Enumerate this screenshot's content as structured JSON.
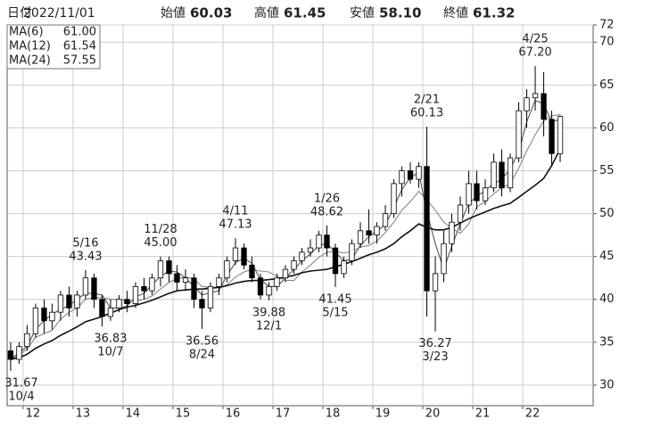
{
  "header": {
    "date_label": "日付",
    "date": "2022/11/01",
    "open_label": "始値",
    "open": "60.03",
    "high_label": "高値",
    "high": "61.45",
    "low_label": "安値",
    "low": "58.10",
    "close_label": "終値",
    "close": "61.32"
  },
  "chart_data": {
    "type": "candlestick",
    "x": [
      2011.75,
      2011.92,
      2012.08,
      2012.25,
      2012.42,
      2012.58,
      2012.75,
      2012.92,
      2013.08,
      2013.25,
      2013.42,
      2013.58,
      2013.75,
      2013.92,
      2014.08,
      2014.25,
      2014.42,
      2014.58,
      2014.75,
      2014.92,
      2015.08,
      2015.25,
      2015.42,
      2015.58,
      2015.75,
      2015.92,
      2016.08,
      2016.25,
      2016.42,
      2016.58,
      2016.75,
      2016.92,
      2017.08,
      2017.25,
      2017.42,
      2017.58,
      2017.75,
      2017.92,
      2018.08,
      2018.25,
      2018.42,
      2018.58,
      2018.75,
      2018.92,
      2019.08,
      2019.25,
      2019.42,
      2019.58,
      2019.75,
      2019.92,
      2020.08,
      2020.25,
      2020.42,
      2020.58,
      2020.75,
      2020.92,
      2021.08,
      2021.25,
      2021.42,
      2021.58,
      2021.75,
      2021.92,
      2022.08,
      2022.25,
      2022.42,
      2022.58,
      2022.75
    ],
    "open": [
      34,
      33,
      34.5,
      36,
      39,
      37.5,
      38.5,
      40.5,
      39,
      40.5,
      42.5,
      40,
      38,
      39,
      40,
      39.5,
      41.5,
      41,
      42.5,
      44.5,
      43,
      42,
      42.5,
      40,
      39,
      41.5,
      42.5,
      44.5,
      46,
      44,
      42.5,
      40.5,
      41.5,
      42.5,
      43.5,
      44.5,
      45.5,
      46,
      47.5,
      46,
      43,
      44.5,
      46.5,
      48,
      47.5,
      48.5,
      50,
      53.5,
      55,
      54,
      55.5,
      41,
      43,
      46.5,
      49,
      51,
      53.5,
      51.5,
      53,
      56,
      53,
      56.5,
      62,
      63.5,
      64,
      61,
      57
    ],
    "high": [
      35,
      35,
      37,
      39.5,
      40,
      39.5,
      41,
      41.5,
      41,
      43.43,
      43,
      40.5,
      40,
      40.5,
      41,
      42,
      42.5,
      43,
      45,
      45,
      44,
      43.5,
      43,
      41,
      42,
      43,
      45,
      47.13,
      46.5,
      45,
      43,
      42,
      43,
      44,
      45,
      46,
      47,
      48,
      48.62,
      46.5,
      45,
      47,
      49,
      50.5,
      49,
      51,
      54,
      55.5,
      56,
      56,
      60.13,
      45,
      48,
      50,
      52,
      55,
      55,
      54,
      57,
      57.5,
      57,
      63,
      64.5,
      67.2,
      66.5,
      62,
      61.45
    ],
    "low": [
      31.67,
      32.5,
      34,
      35.5,
      36,
      36.5,
      37.5,
      38,
      38,
      40,
      39,
      36.83,
      37.5,
      38.5,
      38.5,
      39,
      40,
      40.5,
      41.5,
      42,
      41,
      41,
      39,
      36.56,
      38.5,
      40.5,
      42,
      44,
      43.5,
      42,
      40,
      39.88,
      41,
      42,
      43,
      44,
      45,
      45.5,
      45,
      41.45,
      42.5,
      44,
      46,
      46.5,
      46.5,
      48,
      49.5,
      52,
      53.5,
      53,
      38,
      36.27,
      42,
      45.5,
      48,
      50,
      50.5,
      51,
      52.5,
      52,
      52.5,
      56,
      60,
      62,
      59,
      55.5,
      56
    ],
    "close": [
      33,
      34.5,
      36,
      39,
      37.5,
      38.5,
      40.5,
      39,
      40.5,
      42.5,
      40,
      38,
      39,
      40,
      39.5,
      41.5,
      41,
      42.5,
      44.5,
      43,
      42,
      42.5,
      40,
      39,
      41.5,
      42.5,
      44.5,
      46,
      44,
      42.5,
      40.5,
      41.5,
      42.5,
      43.5,
      44.5,
      45.5,
      46,
      47.5,
      46,
      43,
      44.5,
      46.5,
      48,
      47.5,
      48.5,
      50,
      53.5,
      55,
      54,
      55.5,
      41,
      43,
      46.5,
      49,
      51,
      53.5,
      51.5,
      53,
      56,
      53,
      56.5,
      62,
      63.5,
      64,
      61,
      57,
      61.32
    ],
    "up_color": "#ffffff",
    "down_color": "#000000",
    "edge_color": "#000000",
    "series": [
      {
        "name": "MA(6)",
        "current_label": "61.00",
        "color": "#555555",
        "values": [
          33,
          33.8,
          34.5,
          36.5,
          37.5,
          38.3,
          38.8,
          39.3,
          40,
          40.7,
          40.7,
          40.5,
          39,
          39,
          39.2,
          40.3,
          40.7,
          41.7,
          42.7,
          43.3,
          43.2,
          42.5,
          41.5,
          40.5,
          40.8,
          41,
          42.8,
          44.3,
          44.8,
          44.2,
          42.3,
          41.5,
          41.5,
          42.5,
          43.5,
          44.5,
          45.3,
          46.3,
          46.5,
          45.5,
          44.5,
          44.7,
          46.3,
          47.3,
          48,
          48.7,
          50.7,
          52.8,
          54.2,
          54.8,
          50.2,
          46.5,
          43.5,
          46.2,
          48.8,
          51.2,
          52,
          52.7,
          53.5,
          54,
          55.2,
          57.2,
          60.7,
          63.2,
          62.8,
          60.7,
          61
        ]
      },
      {
        "name": "MA(12)",
        "current_label": "61.54",
        "color": "#888888",
        "values": [
          33,
          33.5,
          34.2,
          35.6,
          36,
          36.4,
          37.7,
          38.5,
          39,
          40,
          40.2,
          40.2,
          40,
          40,
          39.8,
          39.8,
          40,
          40.4,
          41.2,
          42,
          42.4,
          42.6,
          42.4,
          41.5,
          41.4,
          41.4,
          41.7,
          42.6,
          43.2,
          43.5,
          43.3,
          43.2,
          42.7,
          42.2,
          42.2,
          43.2,
          44,
          44.9,
          45.5,
          45.6,
          45.4,
          45.6,
          46.1,
          46.3,
          46.8,
          47.8,
          49,
          50.4,
          51.4,
          52.6,
          51.6,
          50.4,
          49,
          48.3,
          47.7,
          48.8,
          50.8,
          51.4,
          52.3,
          53,
          53.5,
          55.3,
          57.3,
          59.2,
          60.8,
          61.4,
          61.54
        ]
      },
      {
        "name": "MA(24)",
        "current_label": "57.55",
        "color": "#111111",
        "values": [
          33,
          33.2,
          33.6,
          34.3,
          34.8,
          35.2,
          35.8,
          36.3,
          36.8,
          37.4,
          37.7,
          38,
          38.4,
          38.8,
          39.1,
          39.3,
          39.6,
          39.9,
          40.3,
          40.7,
          41,
          41.1,
          41.2,
          41.2,
          41.3,
          41.4,
          41.6,
          41.9,
          42.1,
          42.2,
          42.2,
          42.3,
          42.4,
          42.6,
          42.8,
          43.1,
          43.3,
          43.4,
          43.5,
          43.8,
          44.1,
          44.4,
          44.8,
          45.2,
          45.5,
          45.9,
          46.5,
          47.3,
          48,
          48.8,
          48.4,
          48.1,
          48.1,
          48.4,
          48.9,
          49.4,
          49.8,
          50.2,
          50.6,
          50.9,
          51.2,
          51.9,
          52.6,
          53.3,
          54.1,
          55.6,
          57.55
        ]
      }
    ],
    "annotations": [
      {
        "date": "10/4",
        "x": 2011.75,
        "price": {
          "value": 31.67,
          "label": "31.67"
        },
        "at": "low"
      },
      {
        "date": "5/16",
        "x": 2013.25,
        "price": {
          "value": 43.43,
          "label": "43.43"
        },
        "at": "high"
      },
      {
        "date": "10/7",
        "x": 2013.75,
        "price": {
          "value": 36.83,
          "label": "36.83"
        },
        "at": "low"
      },
      {
        "date": "11/28",
        "x": 2014.75,
        "price": {
          "value": 45,
          "label": "45.00"
        },
        "at": "high"
      },
      {
        "date": "8/24",
        "x": 2015.58,
        "price": {
          "value": 36.56,
          "label": "36.56"
        },
        "at": "low"
      },
      {
        "date": "4/11",
        "x": 2016.25,
        "price": {
          "value": 47.13,
          "label": "47.13"
        },
        "at": "high"
      },
      {
        "date": "12/1",
        "x": 2016.92,
        "price": {
          "value": 39.88,
          "label": "39.88"
        },
        "at": "low"
      },
      {
        "date": "1/26",
        "x": 2018.08,
        "price": {
          "value": 48.62,
          "label": "48.62"
        },
        "at": "high"
      },
      {
        "date": "5/15",
        "x": 2018.25,
        "price": {
          "value": 41.45,
          "label": "41.45"
        },
        "at": "low"
      },
      {
        "date": "2/21",
        "x": 2020.08,
        "price": {
          "value": 60.13,
          "label": "60.13"
        },
        "at": "high"
      },
      {
        "date": "3/23",
        "x": 2020.25,
        "price": {
          "value": 36.27,
          "label": "36.27"
        },
        "at": "low"
      },
      {
        "date": "4/25",
        "x": 2022.25,
        "price": {
          "value": 67.2,
          "label": "67.20"
        },
        "at": "high"
      }
    ],
    "xlim": [
      2011.68,
      2023.41
    ],
    "ylim": [
      27.6,
      72
    ],
    "xticks": [
      {
        "value": 2012,
        "label": "12"
      },
      {
        "value": 2013,
        "label": "13"
      },
      {
        "value": 2014,
        "label": "14"
      },
      {
        "value": 2015,
        "label": "15"
      },
      {
        "value": 2016,
        "label": "16"
      },
      {
        "value": 2017,
        "label": "17"
      },
      {
        "value": 2018,
        "label": "18"
      },
      {
        "value": 2019,
        "label": "19"
      },
      {
        "value": 2020,
        "label": "20"
      },
      {
        "value": 2021,
        "label": "21"
      },
      {
        "value": 2022,
        "label": "22"
      }
    ],
    "yticks": [
      30,
      35,
      40,
      45,
      50,
      55,
      60,
      65,
      70,
      72
    ],
    "grid": true
  }
}
